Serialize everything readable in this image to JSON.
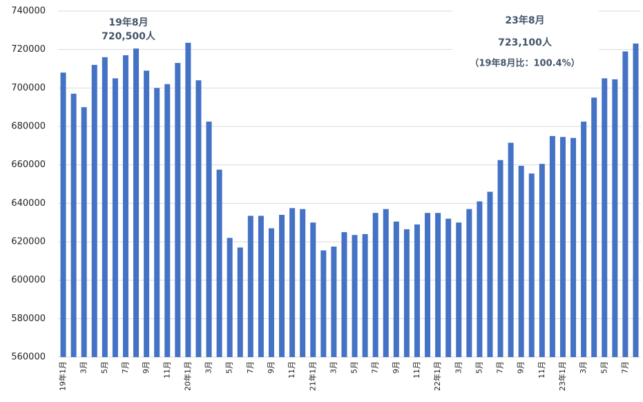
{
  "chart_data": {
    "type": "bar",
    "categories": [
      "19年1月",
      null,
      "3月",
      null,
      "5月",
      null,
      "7月",
      null,
      "9月",
      null,
      "11月",
      null,
      "20年1月",
      null,
      "3月",
      null,
      "5月",
      null,
      "7月",
      null,
      "9月",
      null,
      "11月",
      null,
      "21年1月",
      null,
      "3月",
      null,
      "5月",
      null,
      "7月",
      null,
      "9月",
      null,
      "11月",
      null,
      "22年1月",
      null,
      "3月",
      null,
      "5月",
      null,
      "7月",
      null,
      "9月",
      null,
      "11月",
      null,
      "23年1月",
      null,
      "3月",
      null,
      "5月",
      null,
      "7月",
      null
    ],
    "values": [
      708000,
      697000,
      690000,
      712000,
      716000,
      705000,
      717000,
      720500,
      709000,
      700000,
      702000,
      713000,
      723500,
      704000,
      682500,
      657500,
      622000,
      617000,
      633500,
      633500,
      627000,
      634000,
      637500,
      637000,
      630000,
      615500,
      617500,
      625000,
      623500,
      624000,
      635000,
      637000,
      630500,
      626500,
      629000,
      635000,
      635000,
      632000,
      630000,
      637000,
      641000,
      646000,
      662500,
      671500,
      659500,
      655500,
      660500,
      675000,
      674500,
      674000,
      682500,
      695000,
      705000,
      704500,
      719000,
      723100
    ],
    "color": "#4472c4",
    "ylim": [
      560000,
      740000
    ],
    "yticks": [
      560000,
      580000,
      600000,
      620000,
      640000,
      660000,
      680000,
      700000,
      720000,
      740000
    ],
    "grid": true,
    "annotations": [
      [
        "19年8月",
        "720,500人"
      ],
      [
        "23年8月",
        "723,100人",
        "（19年8月比：100.4%）"
      ]
    ]
  }
}
